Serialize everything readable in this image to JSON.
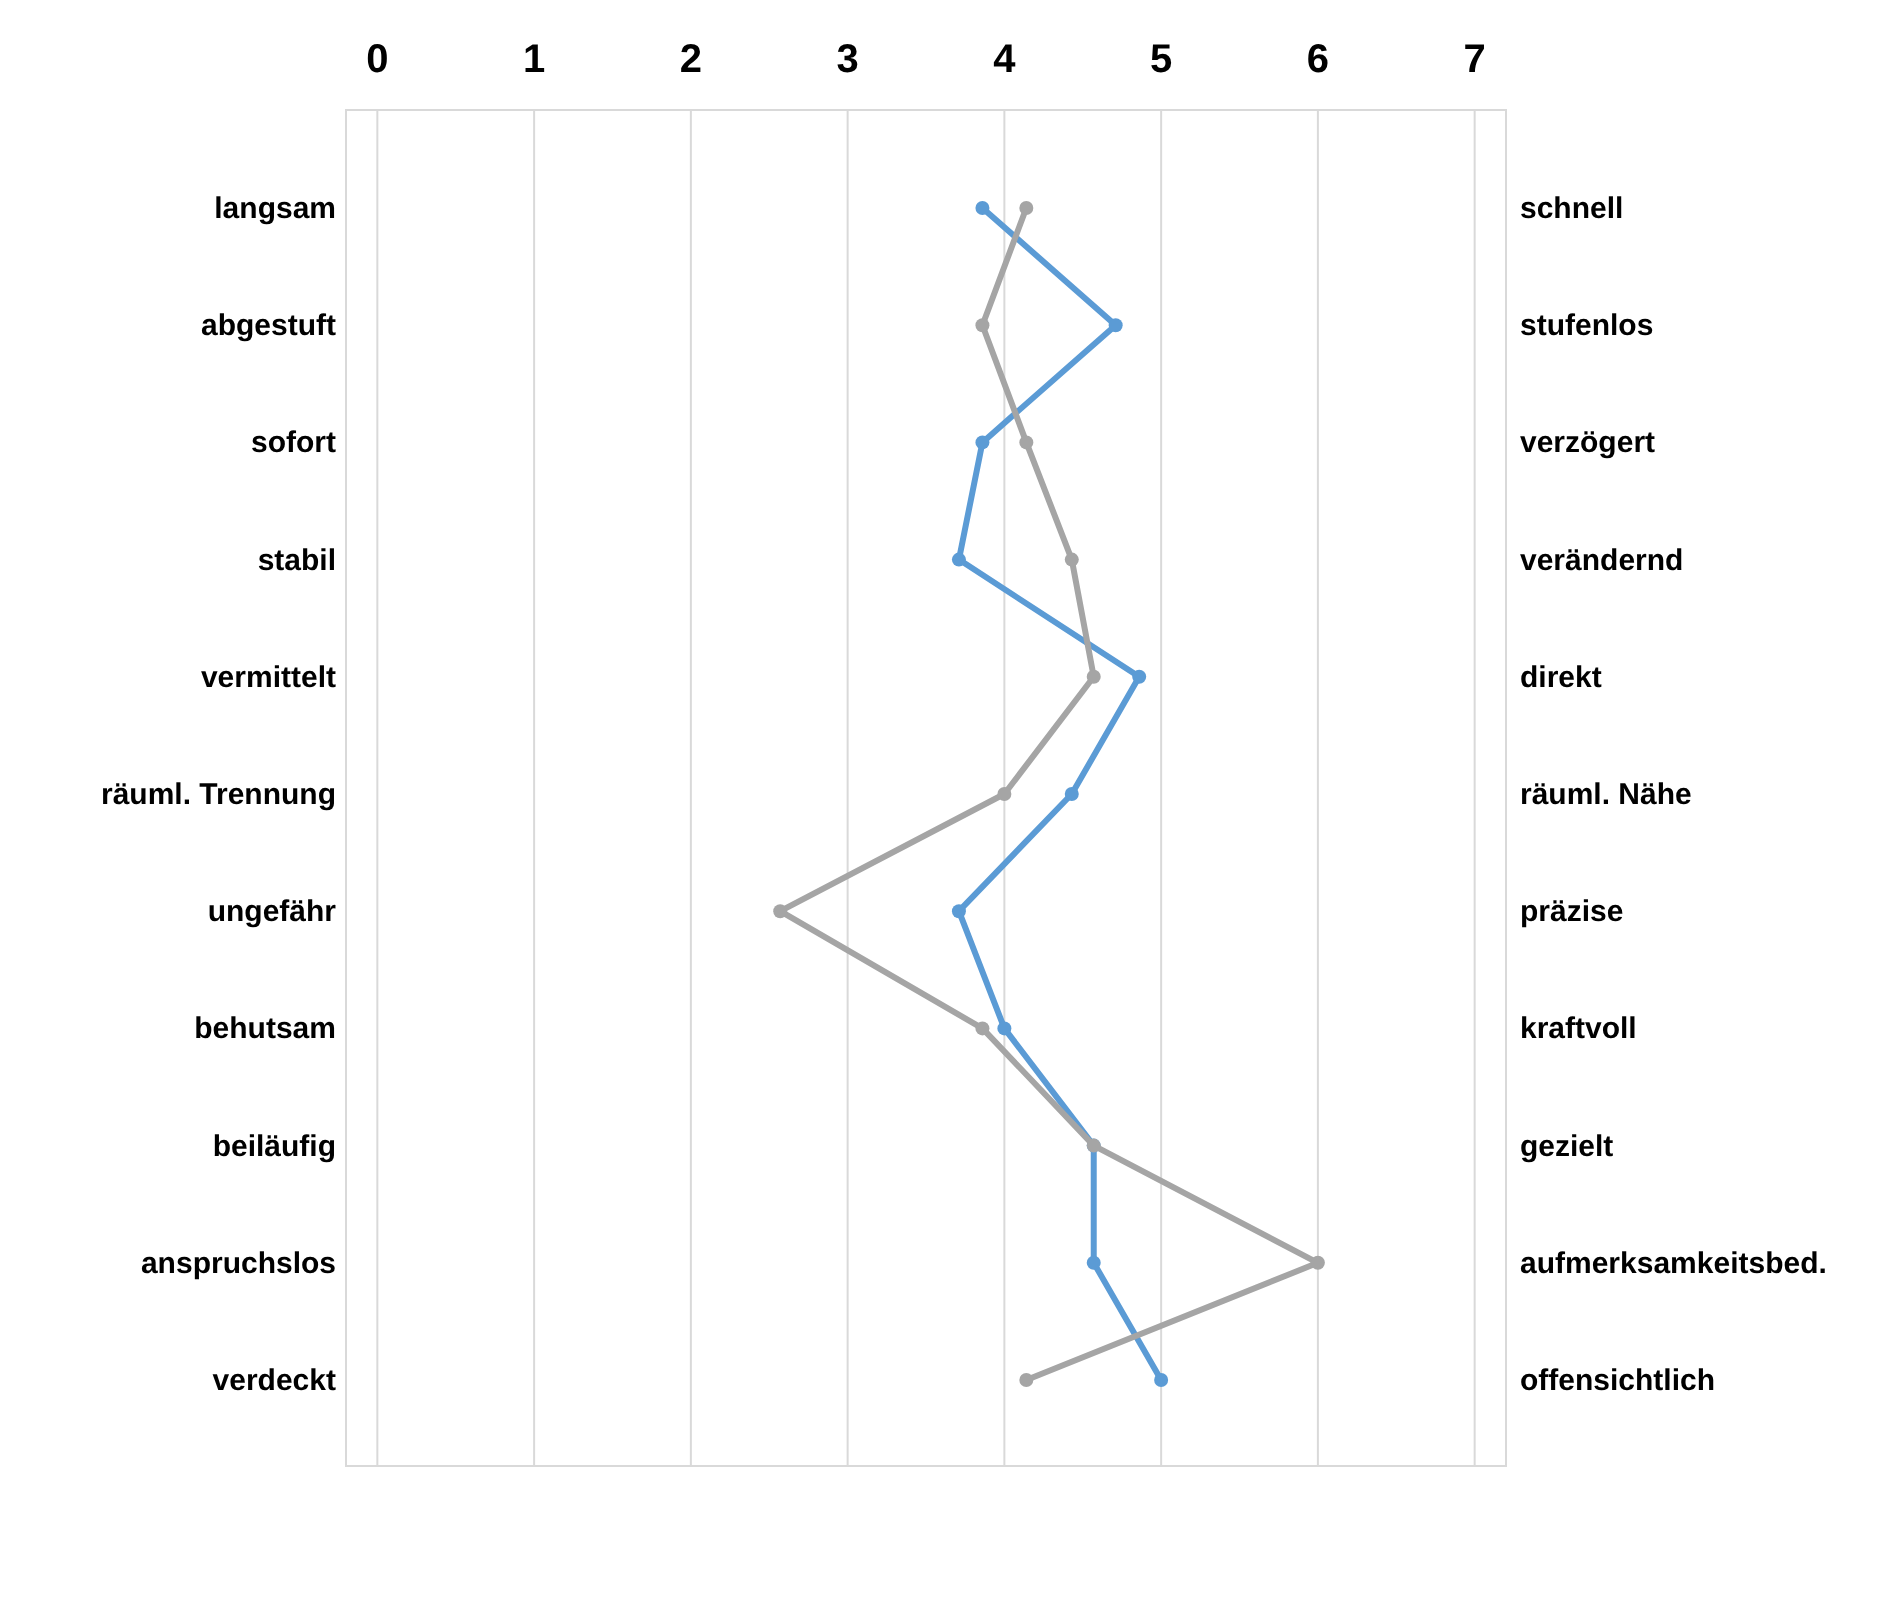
{
  "chart_data": {
    "type": "line",
    "orientation": "horizontal",
    "categories": [
      "langsam",
      "abgestuft",
      "sofort",
      "stabil",
      "vermittelt",
      "räuml. Trennung",
      "ungefähr",
      "behutsam",
      "beiläufig",
      "anspruchslos",
      "verdeckt"
    ],
    "y2_categories": [
      "schnell",
      "stufenlos",
      "verzögert",
      "verändernd",
      "direkt",
      "räuml. Nähe",
      "präzise",
      "kraftvoll",
      "gezielt",
      "aufmerksamkeitsbed.",
      "offensichtlich"
    ],
    "series": [
      {
        "color": "#5b9bd5",
        "values": [
          3.86,
          4.71,
          3.86,
          3.71,
          4.86,
          4.43,
          3.71,
          4.0,
          4.57,
          4.57,
          5.0
        ]
      },
      {
        "color": "#a5a5a5",
        "values": [
          4.14,
          3.86,
          4.14,
          4.43,
          4.57,
          4.0,
          2.57,
          3.86,
          4.57,
          6.0,
          4.14
        ]
      }
    ],
    "xlim": [
      -0.2,
      7.2
    ],
    "xticks": [
      0,
      1,
      2,
      3,
      4,
      5,
      6,
      7
    ],
    "grid": "x",
    "marker": "circle",
    "line_style": "solid"
  }
}
